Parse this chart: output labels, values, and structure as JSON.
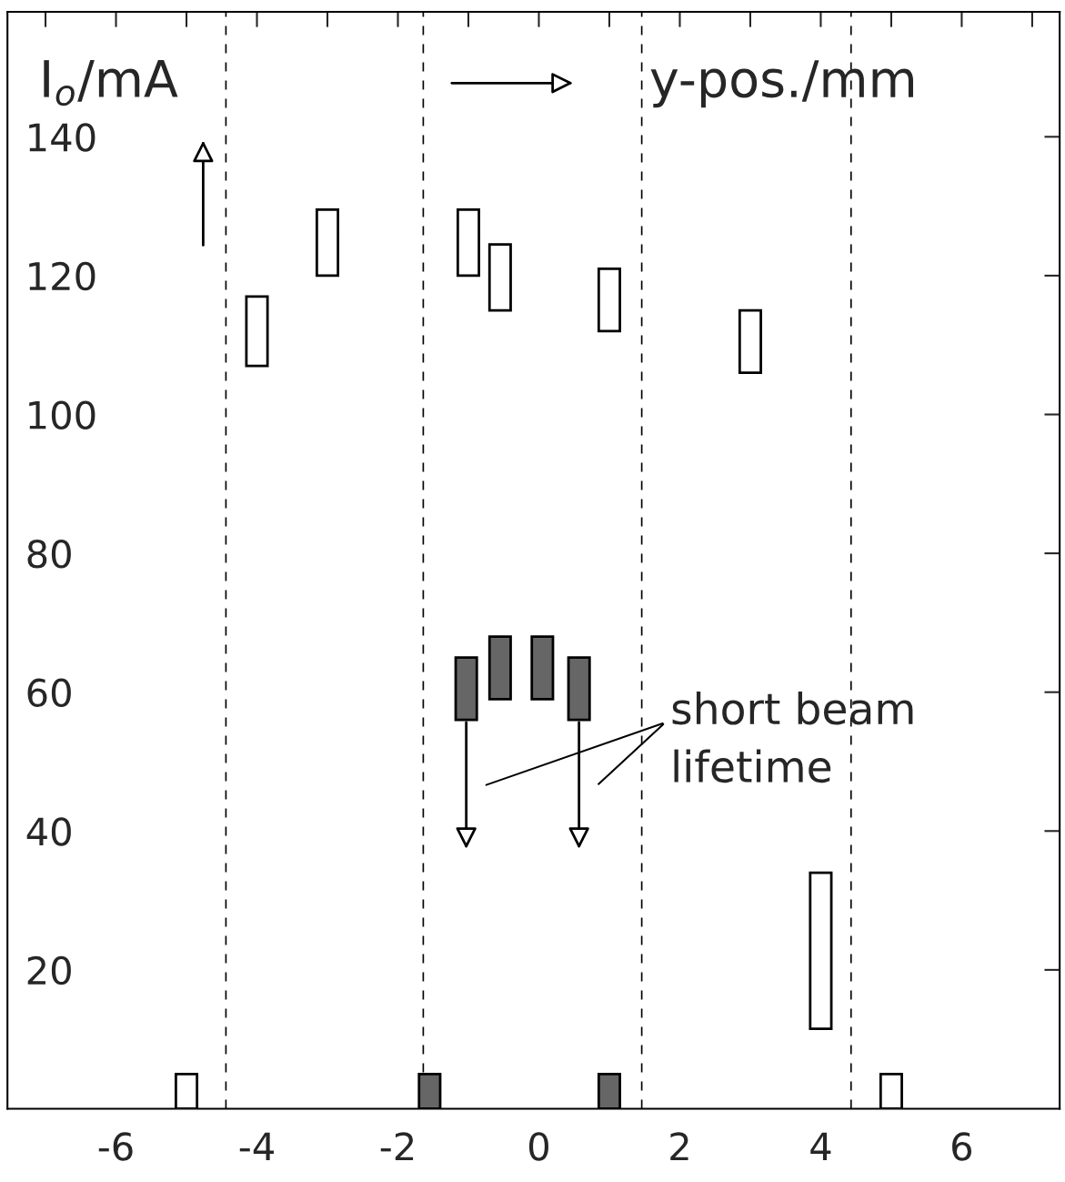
{
  "chart_data": {
    "type": "bar",
    "xlabel": "y-pos./mm",
    "ylabel": "I$_{o}$/mA",
    "annotations": [
      "short beam lifetime"
    ],
    "series": [
      {
        "color": "#ffffff",
        "x": [
          -5,
          -4,
          -3,
          -1,
          -0.55,
          1,
          3,
          4,
          5
        ],
        "base": [
          0,
          107,
          120,
          120,
          115,
          112,
          106,
          11.5,
          0
        ],
        "values": [
          5,
          10,
          9.5,
          9.5,
          9.5,
          9,
          9,
          22.5,
          5
        ]
      },
      {
        "color": "#666666",
        "x": [
          -1.55,
          -1.03,
          -0.55,
          0.05,
          0.57,
          1
        ],
        "base": [
          0,
          56,
          59,
          59,
          56,
          0
        ],
        "values": [
          5,
          9,
          9,
          9,
          9,
          5
        ]
      }
    ],
    "xlim": [
      -7.54,
      7.39
    ],
    "xticks": [
      -6,
      -4,
      -2,
      0,
      2,
      4,
      6
    ],
    "ylim": [
      0,
      158
    ],
    "yticks": [
      20,
      40,
      60,
      80,
      100,
      120,
      140
    ],
    "ref_lines": [
      {
        "axis": "x",
        "value": -4.44,
        "line_style": "dashed"
      },
      {
        "axis": "x",
        "value": 4.43,
        "line_style": "dashed"
      },
      {
        "axis": "x",
        "value": -1.64,
        "line_style": "dashed"
      },
      {
        "axis": "x",
        "value": 1.46,
        "line_style": "dashed"
      }
    ],
    "grid": false,
    "legend": false
  }
}
